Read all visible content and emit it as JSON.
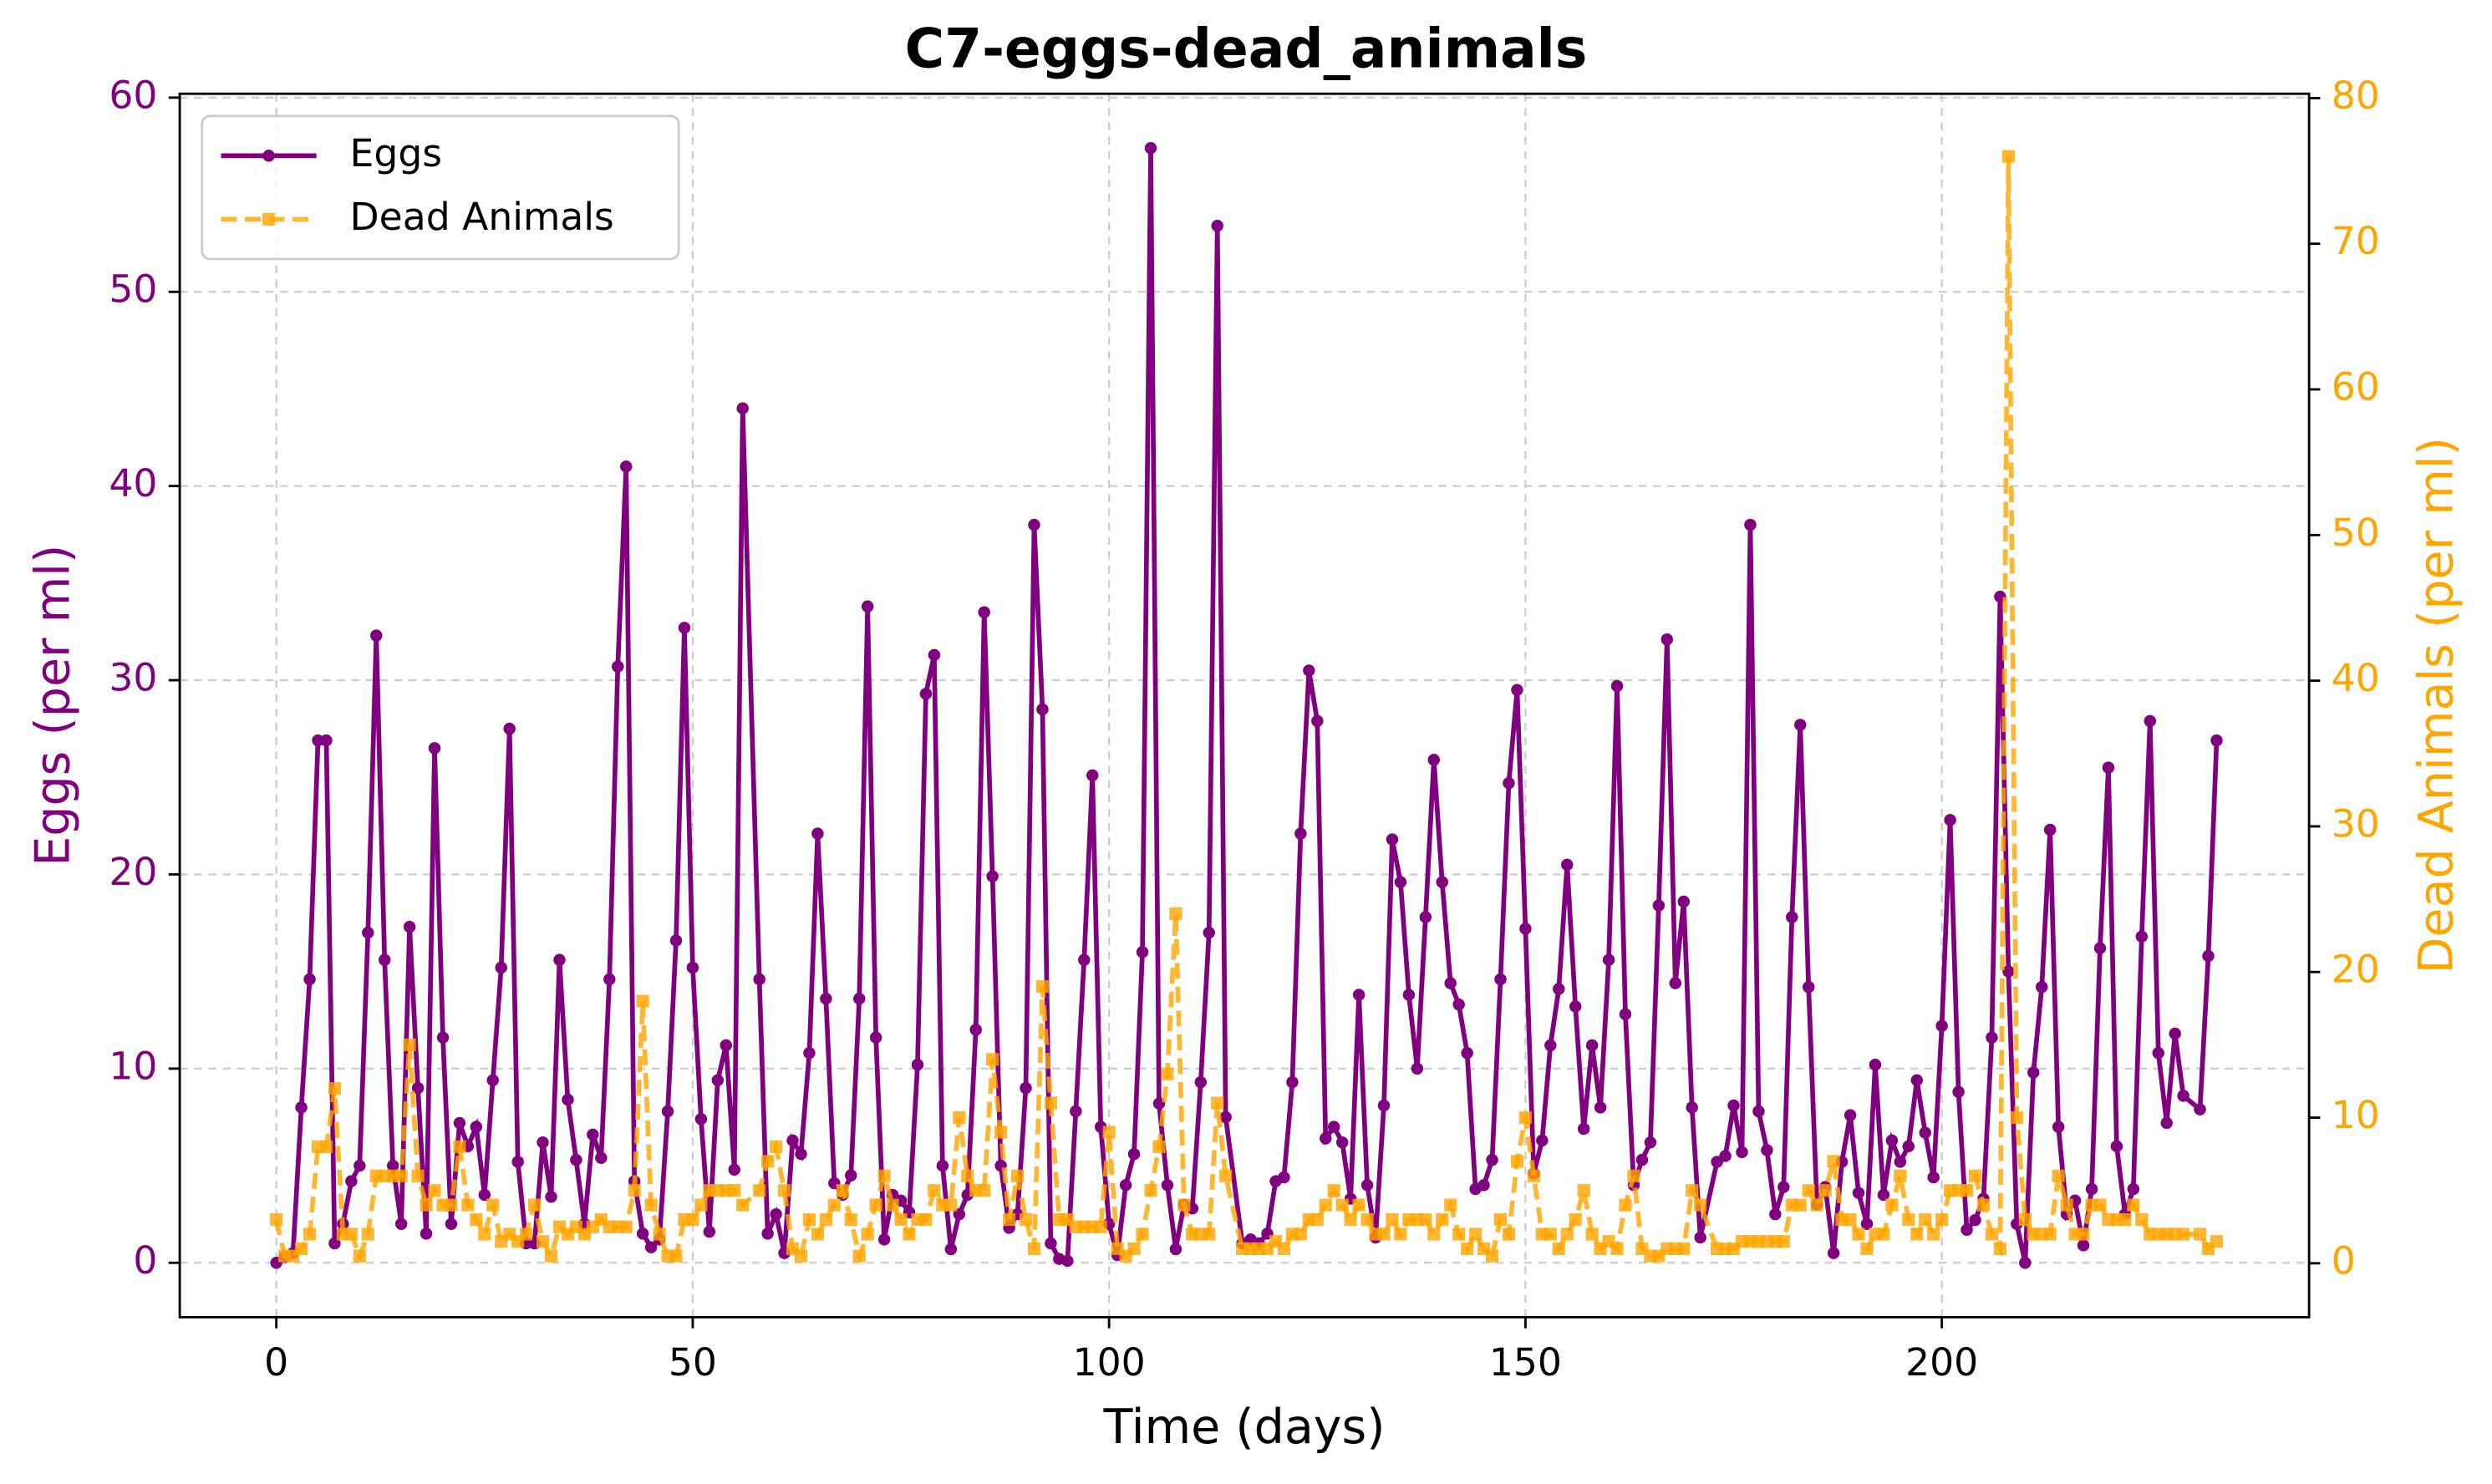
{
  "chart_data": {
    "type": "line",
    "title": "C7-eggs-dead_animals",
    "x_label": "Time (days)",
    "y_label": "Eggs (per ml)",
    "y2_label": "Dead Animals (per ml)",
    "xlim": [
      -11.6,
      244.1
    ],
    "ylim": [
      -2.8,
      60.2
    ],
    "y2lim": [
      -3.7,
      80.3
    ],
    "xticks": [
      0,
      50,
      100,
      150,
      200
    ],
    "yticks": [
      0,
      10,
      20,
      30,
      40,
      50,
      60
    ],
    "y2ticks": [
      0,
      10,
      20,
      30,
      40,
      50,
      60,
      70,
      80
    ],
    "grid": true,
    "legend": "upper left",
    "x": [
      0,
      1,
      2,
      3,
      4,
      5,
      6,
      7,
      8,
      9,
      10,
      11,
      12,
      13,
      14,
      15,
      16,
      17,
      18,
      19,
      20,
      21,
      22,
      23,
      24,
      25,
      26,
      27,
      28,
      29,
      30,
      31,
      32,
      33,
      34,
      35,
      36,
      37,
      38,
      39,
      40,
      41,
      42,
      43,
      44,
      45,
      46,
      47,
      48,
      49,
      50,
      51,
      52,
      53,
      54,
      55,
      56,
      58,
      59,
      60,
      61,
      62,
      63,
      64,
      65,
      66,
      67,
      68,
      69,
      70,
      71,
      72,
      73,
      74,
      75,
      76,
      77,
      78,
      79,
      80,
      81,
      82,
      83,
      84,
      85,
      86,
      87,
      88,
      89,
      90,
      91,
      92,
      93,
      94,
      95,
      96,
      97,
      98,
      99,
      100,
      101,
      102,
      103,
      104,
      105,
      106,
      107,
      108,
      109,
      110,
      111,
      112,
      113,
      114,
      116,
      117,
      118,
      119,
      120,
      121,
      122,
      123,
      124,
      125,
      126,
      127,
      128,
      129,
      130,
      131,
      132,
      133,
      134,
      135,
      136,
      137,
      138,
      139,
      140,
      141,
      142,
      143,
      144,
      145,
      146,
      147,
      148,
      149,
      150,
      151,
      152,
      153,
      154,
      155,
      156,
      157,
      158,
      159,
      160,
      161,
      162,
      163,
      164,
      165,
      166,
      167,
      168,
      169,
      170,
      171,
      173,
      174,
      175,
      176,
      177,
      178,
      179,
      180,
      181,
      182,
      183,
      184,
      185,
      186,
      187,
      188,
      189,
      190,
      191,
      192,
      193,
      194,
      195,
      196,
      197,
      198,
      199,
      200,
      201,
      202,
      203,
      204,
      205,
      206,
      207,
      208,
      209,
      210,
      211,
      212,
      213,
      214,
      215,
      216,
      217,
      218,
      219,
      220,
      221,
      222,
      223,
      224,
      225,
      226,
      227,
      228,
      229,
      231,
      232,
      233
    ],
    "series": [
      {
        "name": "Eggs",
        "color": "#800080",
        "axis": "y",
        "values": [
          0,
          0.3,
          0.5,
          8,
          14.6,
          26.9,
          26.9,
          1,
          2,
          4.2,
          5,
          17,
          32.3,
          15.6,
          5,
          2,
          17.3,
          9,
          1.5,
          26.5,
          11.6,
          2,
          7.2,
          6,
          7,
          3.5,
          9.4,
          15.2,
          27.5,
          5.2,
          1,
          1,
          6.2,
          3.4,
          15.6,
          8.4,
          5.3,
          2,
          6.6,
          5.4,
          14.6,
          30.7,
          41,
          4.2,
          1.5,
          0.8,
          1.2,
          7.8,
          16.6,
          32.7,
          15.2,
          7.4,
          1.6,
          9.4,
          11.2,
          4.8,
          44,
          14.6,
          1.5,
          2.5,
          0.5,
          6.3,
          5.6,
          10.8,
          22.1,
          13.6,
          4.1,
          3.5,
          4.5,
          13.6,
          33.8,
          11.6,
          1.2,
          3.5,
          3.2,
          2.6,
          10.2,
          29.3,
          31.3,
          5,
          0.7,
          2.5,
          3.5,
          12,
          33.5,
          19.9,
          5,
          1.8,
          2.5,
          9,
          38,
          28.5,
          1,
          0.2,
          0.1,
          7.8,
          15.6,
          25.1,
          7,
          2,
          0.4,
          4,
          5.6,
          16,
          57.4,
          8.2,
          4,
          0.7,
          3,
          2.8,
          9.3,
          17,
          53.4,
          7.5,
          1,
          1.2,
          1,
          1.5,
          4.2,
          4.4,
          9.3,
          22.1,
          30.5,
          27.9,
          6.4,
          7,
          6.2,
          3.3,
          13.8,
          4,
          1.3,
          8.1,
          21.8,
          19.6,
          13.8,
          10,
          17.8,
          25.9,
          19.6,
          14.4,
          13.3,
          10.8,
          3.8,
          4,
          5.3,
          14.6,
          24.7,
          29.5,
          17.2,
          4.6,
          6.3,
          11.2,
          14.1,
          20.5,
          13.2,
          6.9,
          11.2,
          8,
          15.6,
          29.7,
          12.8,
          4,
          5.3,
          6.2,
          18.4,
          32.1,
          14.4,
          18.6,
          8,
          1.3,
          5.2,
          5.5,
          8.1,
          5.7,
          38,
          7.8,
          5.8,
          2.5,
          3.9,
          17.8,
          27.7,
          14.2,
          3,
          3.9,
          0.5,
          5.2,
          7.6,
          3.6,
          2,
          10.2,
          3.5,
          6.3,
          5.2,
          6,
          9.4,
          6.7,
          4.4,
          12.2,
          22.8,
          8.8,
          1.7,
          2.2,
          3.3,
          11.6,
          34.3,
          15,
          2,
          0,
          9.8,
          14.2,
          22.3,
          7,
          2.5,
          3.2,
          0.9,
          3.8,
          16.2,
          25.5,
          6,
          2.5,
          3.8,
          16.8,
          27.9,
          10.8,
          7.2,
          11.8,
          8.6,
          7.9,
          15.8,
          26.9
        ]
      },
      {
        "name": "Dead Animals",
        "color": "#ffa500",
        "axis": "y2",
        "values": [
          3,
          0.5,
          0.5,
          1,
          2,
          8,
          8,
          12,
          2,
          2,
          0.5,
          2,
          6,
          6,
          6,
          6,
          15,
          6,
          4,
          5,
          4,
          4,
          8,
          4,
          3,
          2,
          4,
          1.5,
          2,
          1.5,
          2,
          4,
          1.5,
          0.5,
          2.5,
          2,
          2.5,
          2,
          2.5,
          3,
          2.5,
          2.5,
          2.5,
          5,
          18,
          4,
          2,
          0.5,
          0.5,
          3,
          3,
          4,
          5,
          5,
          5,
          5,
          4,
          5,
          7,
          8,
          5,
          1,
          0.5,
          3,
          2,
          3,
          4,
          5,
          3,
          0.5,
          2,
          4,
          6,
          4,
          3,
          2,
          3,
          3,
          5,
          4,
          4,
          10,
          6,
          5,
          5,
          14,
          9,
          3,
          6,
          3,
          1,
          19,
          11,
          3,
          3,
          2.5,
          2.5,
          2.5,
          2.5,
          9,
          1,
          0.5,
          1,
          2,
          5,
          8,
          13,
          24,
          4,
          2,
          2,
          2,
          11,
          6,
          1,
          1,
          1,
          1,
          1.5,
          1,
          2,
          2,
          3,
          3,
          4,
          5,
          4,
          3,
          4,
          3,
          2,
          2,
          3,
          2,
          3,
          3,
          3,
          2,
          3,
          4,
          2,
          1,
          2,
          1,
          0.5,
          3,
          2,
          7,
          10,
          6,
          2,
          2,
          1,
          2,
          3,
          5,
          2,
          1,
          1.5,
          1,
          4,
          6,
          1,
          0.5,
          0.5,
          1,
          1,
          1,
          5,
          4,
          1,
          1,
          1,
          1.5,
          1.5,
          1.5,
          1.5,
          1.5,
          1.5,
          4,
          4,
          5,
          4,
          5,
          7,
          3,
          3,
          2,
          1,
          2,
          2,
          4,
          6,
          3,
          2,
          3,
          2,
          3,
          5,
          5,
          5,
          6,
          4,
          2,
          1,
          76,
          10,
          3,
          2,
          2,
          2,
          6,
          4,
          2,
          2,
          4,
          4,
          3,
          3,
          3,
          4,
          3,
          2,
          2,
          2,
          2,
          2,
          2,
          1,
          1.5
        ]
      }
    ]
  }
}
